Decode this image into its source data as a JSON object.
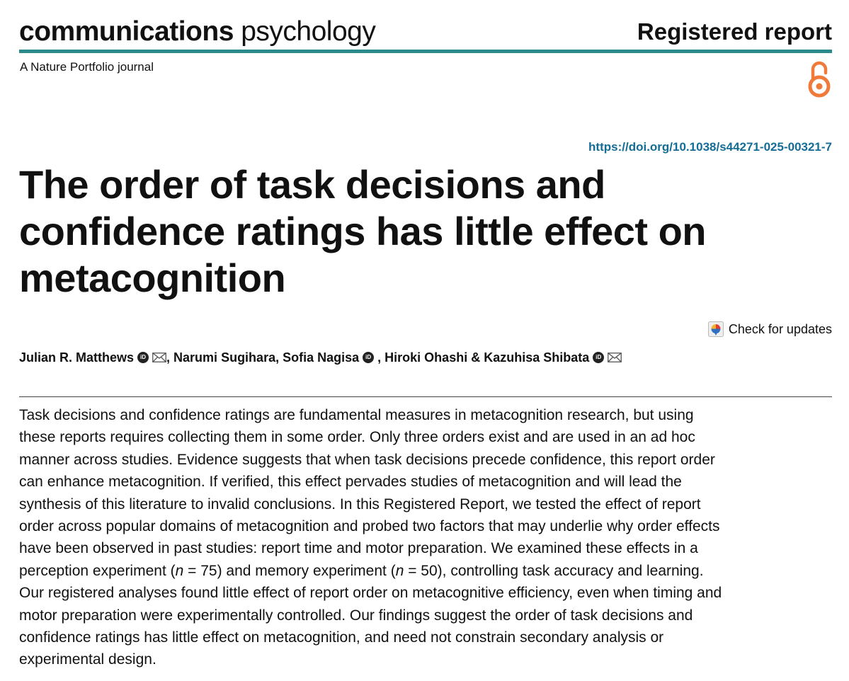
{
  "header": {
    "journal_bold": "communications",
    "journal_regular": "psychology",
    "article_type": "Registered report",
    "tagline": "A Nature Portfolio journal",
    "open_access_icon": "open-access-icon"
  },
  "doi": "https://doi.org/10.1038/s44271-025-00321-7",
  "title": "The order of task decisions and confidence ratings has little effect on metacognition",
  "check_updates": {
    "label": "Check for updates",
    "icon": "check-updates-icon"
  },
  "authors": [
    {
      "name": "Julian R. Matthews",
      "orcid": true,
      "email": true
    },
    {
      "name": "Narumi Sugihara",
      "orcid": false,
      "email": false
    },
    {
      "name": "Sofia Nagisa",
      "orcid": true,
      "email": false
    },
    {
      "name": "Hiroki Ohashi",
      "orcid": false,
      "email": false
    },
    {
      "name": "Kazuhisa Shibata",
      "orcid": true,
      "email": true
    }
  ],
  "author_separators": [
    ", ",
    ", ",
    " , ",
    " & "
  ],
  "orcid_label": "iD",
  "abstract": {
    "part1": "Task decisions and confidence ratings are fundamental measures in metacognition research, but using these reports requires collecting them in some order. Only three orders exist and are used in an ad hoc manner across studies. Evidence suggests that when task decisions precede confidence, this report order can enhance metacognition. If verified, this effect pervades studies of metacognition and will lead the synthesis of this literature to invalid conclusions. In this Registered Report, we tested the effect of report order across popular domains of metacognition and probed two factors that may underlie why order effects have been observed in past studies: report time and motor preparation. We examined these effects in a perception experiment (",
    "n_symbol_1": "n",
    "part2": " = 75) and memory experiment (",
    "n_symbol_2": "n",
    "part3": " = 50), controlling task accuracy and learning. Our registered analyses found little effect of report order on metacognitive efficiency, even when timing and motor preparation were experimentally controlled. Our findings suggest the order of task decisions and confidence ratings has little effect on metacognition, and need not constrain secondary analysis or experimental design."
  },
  "colors": {
    "accent_rule": "#2c8a8a",
    "doi_link": "#146c97",
    "open_access": "#f07a3a"
  }
}
